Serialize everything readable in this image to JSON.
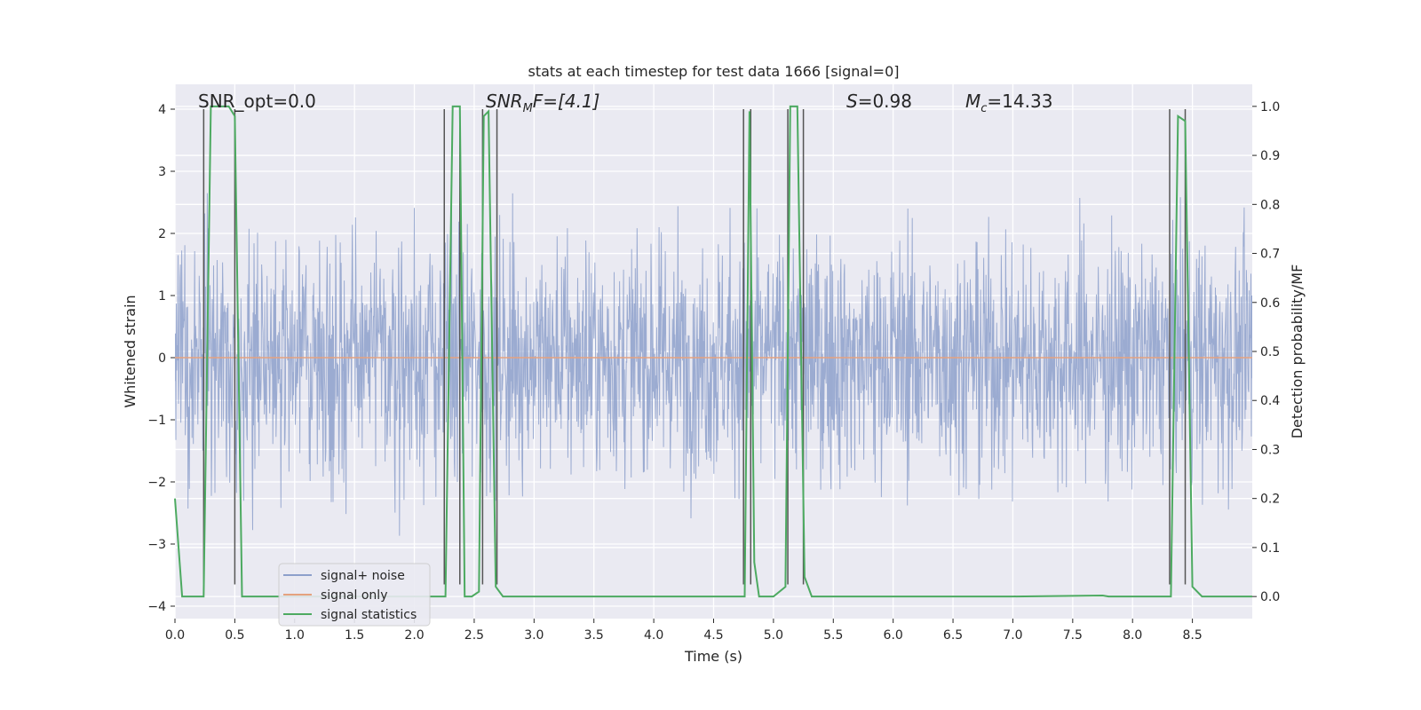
{
  "chart_data": {
    "type": "line",
    "title": "stats at each timestep for test data 1666 [signal=0]",
    "xlabel": "Time (s)",
    "ylabel": "Whitened strain",
    "y2label": "Detection probability/MF",
    "xlim": [
      0.0,
      9.0
    ],
    "ylim": [
      -4.2,
      4.4
    ],
    "y2lim": [
      -0.045,
      1.045
    ],
    "xticks": [
      "0.0",
      "0.5",
      "1.0",
      "1.5",
      "2.0",
      "2.5",
      "3.0",
      "3.5",
      "4.0",
      "4.5",
      "5.0",
      "5.5",
      "6.0",
      "6.5",
      "7.0",
      "7.5",
      "8.0",
      "8.5"
    ],
    "xtick_values": [
      0.0,
      0.5,
      1.0,
      1.5,
      2.0,
      2.5,
      3.0,
      3.5,
      4.0,
      4.5,
      5.0,
      5.5,
      6.0,
      6.5,
      7.0,
      7.5,
      8.0,
      8.5
    ],
    "yticks": [
      "−4",
      "−3",
      "−2",
      "−1",
      "0",
      "1",
      "2",
      "3",
      "4"
    ],
    "ytick_values": [
      -4,
      -3,
      -2,
      -1,
      0,
      1,
      2,
      3,
      4
    ],
    "y2ticks": [
      "0.0",
      "0.1",
      "0.2",
      "0.3",
      "0.4",
      "0.5",
      "0.6",
      "0.7",
      "0.8",
      "0.9",
      "1.0"
    ],
    "y2tick_values": [
      0.0,
      0.1,
      0.2,
      0.3,
      0.4,
      0.5,
      0.6,
      0.7,
      0.8,
      0.9,
      1.0
    ],
    "grid": true,
    "legend_position": "lower-left",
    "annotations": {
      "snr_opt": "SNR_opt=0.0",
      "snr_mf_main": "SNR",
      "snr_mf_sub": "M",
      "snr_mf_rest": "F=[4.1]",
      "s_italic": "S",
      "s_rest": "=0.98",
      "mc_italic": "M",
      "mc_sub": "c",
      "mc_rest": "=14.33"
    },
    "series": [
      {
        "name": "signal+ noise",
        "color": "#8da0cb",
        "kind": "noise",
        "t_range": [
          0.0,
          9.0
        ],
        "amplitude_std": 1.0
      },
      {
        "name": "signal only",
        "color": "#e5a27f",
        "kind": "constant",
        "x": [
          0.0,
          9.0
        ],
        "y": [
          0.0,
          0.0
        ]
      },
      {
        "name": "signal statistics",
        "color": "#4daa61",
        "axis": "right",
        "x": [
          0.0,
          0.06,
          0.24,
          0.3,
          0.45,
          0.5,
          0.56,
          1.0,
          1.5,
          2.0,
          2.26,
          2.32,
          2.38,
          2.42,
          2.48,
          2.54,
          2.58,
          2.62,
          2.68,
          2.74,
          2.8,
          3.0,
          4.0,
          4.5,
          4.76,
          4.8,
          4.84,
          4.88,
          4.92,
          5.0,
          5.1,
          5.14,
          5.2,
          5.26,
          5.32,
          5.38,
          5.5,
          6.0,
          7.0,
          7.75,
          7.8,
          8.0,
          8.32,
          8.38,
          8.44,
          8.5,
          8.58,
          8.7,
          9.0
        ],
        "y": [
          0.2,
          0.0,
          0.0,
          1.0,
          1.0,
          0.98,
          0.0,
          0.0,
          0.0,
          0.0,
          0.0,
          1.0,
          1.0,
          0.0,
          0.0,
          0.01,
          0.98,
          0.99,
          0.02,
          0.0,
          0.0,
          0.0,
          0.0,
          0.0,
          0.0,
          0.99,
          0.07,
          0.0,
          0.0,
          0.0,
          0.02,
          1.0,
          1.0,
          0.04,
          0.0,
          0.0,
          0.0,
          0.0,
          0.0,
          0.002,
          0.0,
          0.0,
          0.0,
          0.98,
          0.97,
          0.02,
          0.0,
          0.0,
          0.0
        ]
      }
    ],
    "vertical_lines_x": [
      0.24,
      0.5,
      2.25,
      2.38,
      2.57,
      2.69,
      4.75,
      4.81,
      5.12,
      5.25,
      8.31,
      8.44
    ]
  }
}
